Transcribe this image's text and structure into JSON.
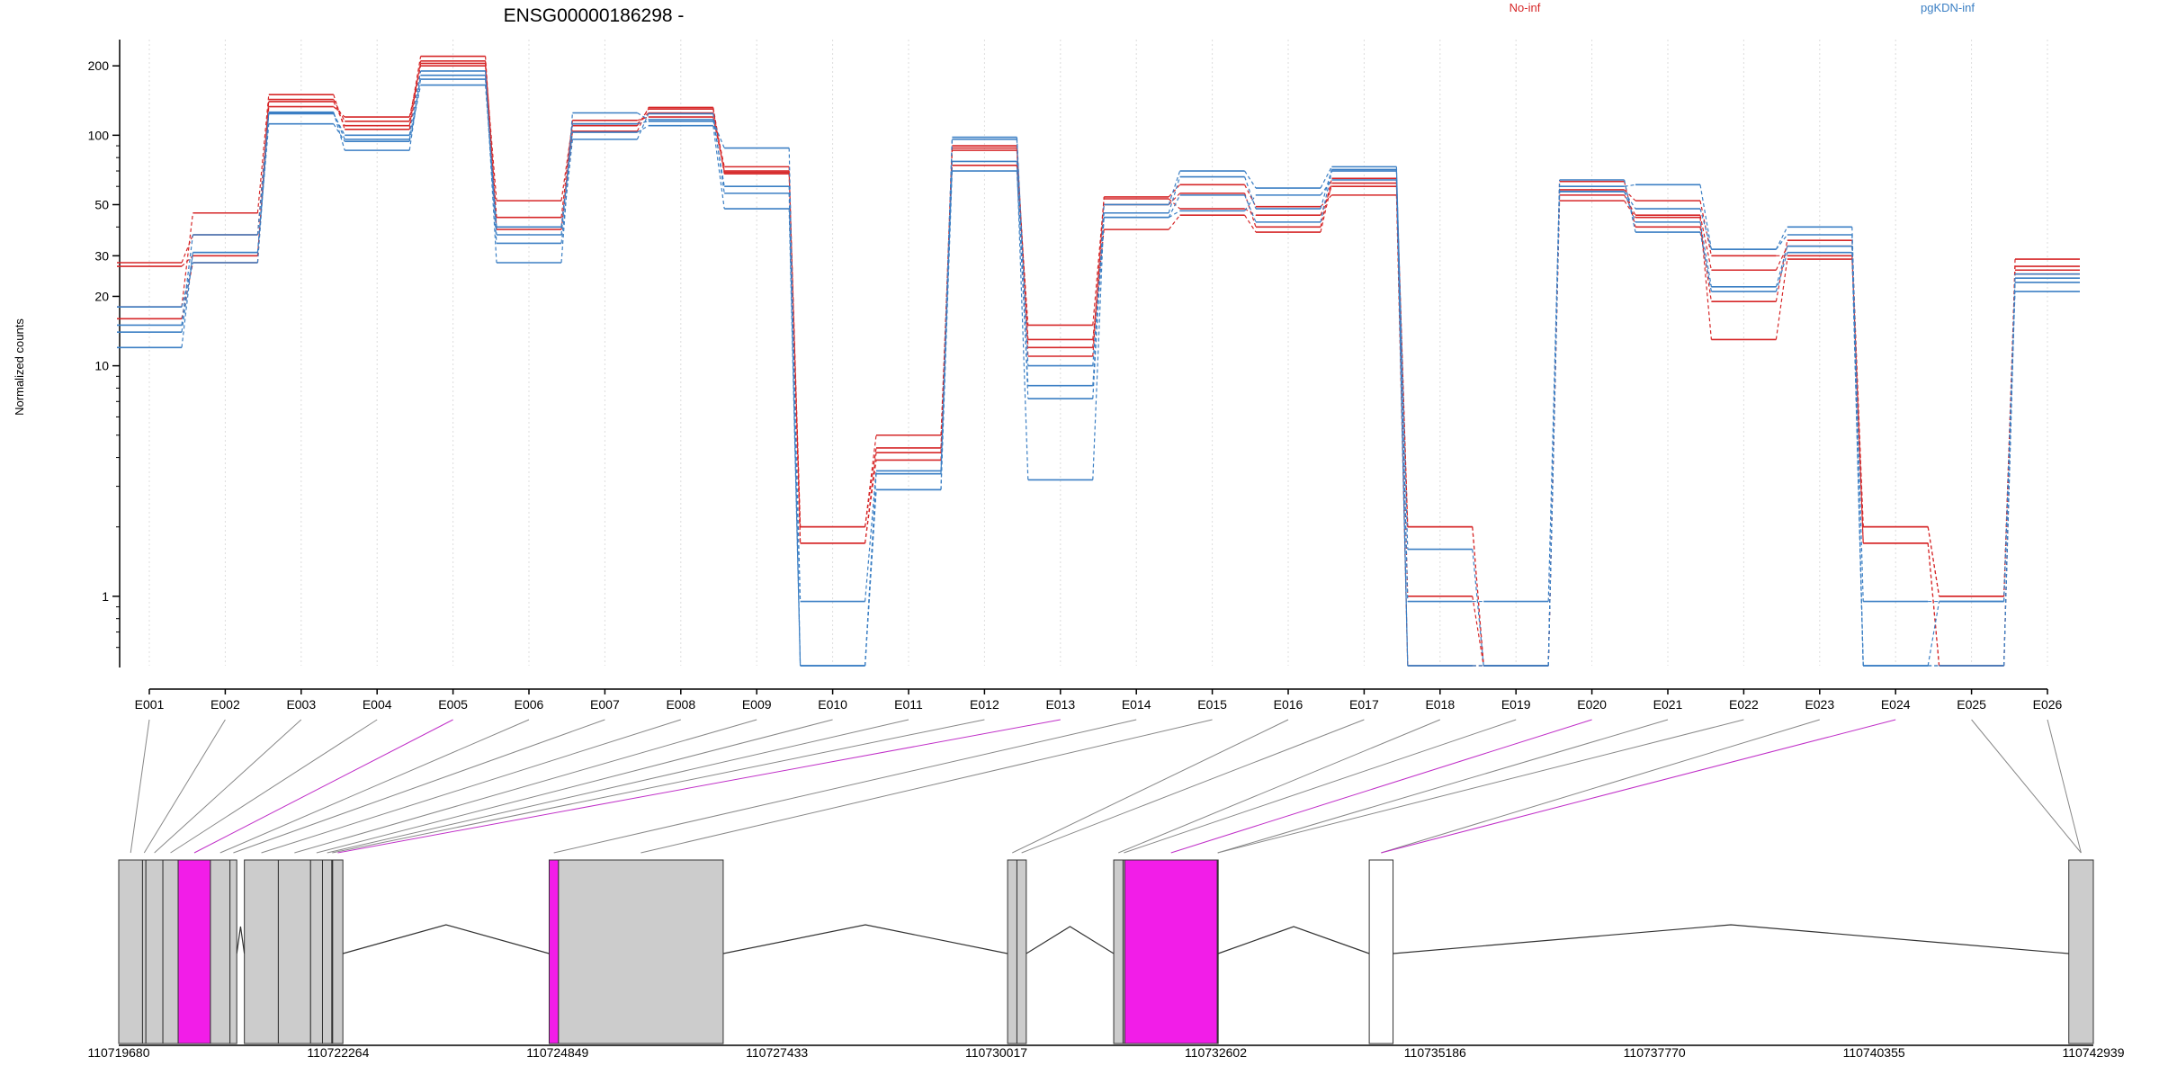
{
  "title": "ENSG00000186298 -",
  "legend": [
    {
      "name": "No-inf",
      "color": "#d62728"
    },
    {
      "name": "pgKDN-inf",
      "color": "#3b7fc4"
    }
  ],
  "chart_data": {
    "type": "line",
    "title": "ENSG00000186298 -",
    "ylabel": "Normalized counts",
    "yscale": "log",
    "ylim": [
      0.5,
      260
    ],
    "yticks": [
      "1",
      "10",
      "20",
      "30",
      "50",
      "100",
      "200"
    ],
    "grid": "vertical dotted",
    "legend_placement": "top",
    "categories": [
      "E001",
      "E002",
      "E003",
      "E004",
      "E005",
      "E006",
      "E007",
      "E008",
      "E009",
      "E010",
      "E011",
      "E012",
      "E013",
      "E014",
      "E015",
      "E016",
      "E017",
      "E018",
      "E019",
      "E020",
      "E021",
      "E022",
      "E023",
      "E024",
      "E025",
      "E026"
    ],
    "series": [
      {
        "group": "No-inf",
        "values": [
          28,
          37,
          140,
          110,
          210,
          40,
          110,
          130,
          68,
          1.7,
          4.2,
          90,
          12,
          50,
          56,
          40,
          65,
          2,
          0.5,
          55,
          45,
          26,
          33,
          2,
          1,
          27
        ]
      },
      {
        "group": "No-inf",
        "values": [
          18,
          46,
          150,
          106,
          205,
          44,
          116,
          120,
          70,
          2,
          5,
          74,
          15,
          53,
          48,
          45,
          60,
          1,
          0.5,
          58,
          52,
          30,
          30,
          1.7,
          0.5,
          29
        ]
      },
      {
        "group": "No-inf",
        "values": [
          27,
          30,
          133,
          120,
          200,
          52,
          112,
          125,
          73,
          1.7,
          3.9,
          86,
          11,
          54,
          61,
          49,
          55,
          0.5,
          0.5,
          63,
          40,
          19,
          35,
          1.7,
          0.5,
          26
        ]
      },
      {
        "group": "No-inf",
        "values": [
          16,
          28,
          143,
          115,
          220,
          39,
          104,
          132,
          69,
          2,
          4.4,
          88,
          13,
          39,
          45,
          38,
          62,
          2,
          0.5,
          52,
          44,
          13,
          29,
          2,
          1,
          25
        ]
      },
      {
        "group": "pgKDN-inf",
        "values": [
          14,
          31,
          124,
          100,
          190,
          28,
          125,
          117,
          60,
          0.95,
          3.5,
          96,
          7.2,
          50,
          70,
          59,
          73,
          0.95,
          0.95,
          60,
          61,
          32,
          40,
          0.95,
          0.95,
          21
        ]
      },
      {
        "group": "pgKDN-inf",
        "values": [
          18,
          28,
          126,
          86,
          182,
          37,
          112,
          115,
          88,
          0.5,
          3.4,
          77,
          3.2,
          46,
          66,
          48,
          71,
          1.6,
          0.5,
          57,
          48,
          32,
          37,
          0.5,
          0.95,
          24
        ]
      },
      {
        "group": "pgKDN-inf",
        "values": [
          12,
          31,
          112,
          94,
          165,
          40,
          103,
          110,
          48,
          0.5,
          2.9,
          70,
          8.2,
          44,
          47,
          55,
          64,
          0.5,
          0.5,
          57,
          42,
          22,
          33,
          0.5,
          0.5,
          25
        ]
      },
      {
        "group": "pgKDN-inf",
        "values": [
          15,
          37,
          125,
          96,
          175,
          34,
          96,
          124,
          56,
          0.5,
          2.9,
          98,
          10,
          44,
          55,
          42,
          70,
          0.5,
          0.5,
          64,
          38,
          21,
          31,
          0.5,
          0.5,
          23
        ]
      }
    ],
    "gene_model": {
      "axis_ticks": [
        "110719680",
        "110722264",
        "110724849",
        "110727433",
        "110730017",
        "110732602",
        "110735186",
        "110737770",
        "110740355",
        "110742939"
      ],
      "axis_min": 110719680,
      "axis_max": 110742939,
      "exons": [
        {
          "start": 110719680,
          "end": 110719960,
          "fill": "#cccccc"
        },
        {
          "start": 110719960,
          "end": 110720000,
          "fill": "#cccccc"
        },
        {
          "start": 110720000,
          "end": 110720200,
          "fill": "#cccccc"
        },
        {
          "start": 110720200,
          "end": 110720380,
          "fill": "#cccccc"
        },
        {
          "start": 110720380,
          "end": 110720760,
          "fill": "#f21de8"
        },
        {
          "start": 110720760,
          "end": 110720990,
          "fill": "#cccccc"
        },
        {
          "start": 110720990,
          "end": 110721070,
          "fill": "#cccccc"
        },
        {
          "start": 110721160,
          "end": 110721560,
          "fill": "#cccccc"
        },
        {
          "start": 110721560,
          "end": 110721940,
          "fill": "#cccccc"
        },
        {
          "start": 110721940,
          "end": 110722080,
          "fill": "#cccccc"
        },
        {
          "start": 110722080,
          "end": 110722190,
          "fill": "#cccccc"
        },
        {
          "start": 110722190,
          "end": 110722200,
          "fill": "#cccccc"
        },
        {
          "start": 110722200,
          "end": 110722320,
          "fill": "#cccccc"
        },
        {
          "start": 110724750,
          "end": 110724860,
          "fill": "#f21de8"
        },
        {
          "start": 110724860,
          "end": 110726800,
          "fill": "#cccccc"
        },
        {
          "start": 110730150,
          "end": 110730260,
          "fill": "#cccccc"
        },
        {
          "start": 110730260,
          "end": 110730370,
          "fill": "#cccccc"
        },
        {
          "start": 110731400,
          "end": 110731510,
          "fill": "#cccccc"
        },
        {
          "start": 110731510,
          "end": 110731530,
          "fill": "#cccccc"
        },
        {
          "start": 110731530,
          "end": 110732620,
          "fill": "#f21de8"
        },
        {
          "start": 110732620,
          "end": 110732630,
          "fill": "#f21de8"
        },
        {
          "start": 110734410,
          "end": 110734690,
          "fill": "#ffffff"
        },
        {
          "start": 110742650,
          "end": 110742939,
          "fill": "#cccccc"
        }
      ],
      "highlighted_bins": [
        "E005",
        "E013",
        "E020",
        "E024"
      ]
    }
  }
}
